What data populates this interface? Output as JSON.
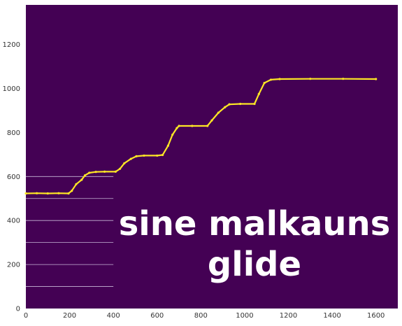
{
  "chart_data": {
    "type": "heatmap",
    "title": "",
    "xlabel": "",
    "ylabel": "",
    "xlim": [
      0,
      1700
    ],
    "ylim": [
      0,
      1380
    ],
    "x_ticks": [
      "0",
      "200",
      "400",
      "600",
      "800",
      "1000",
      "1200",
      "1400",
      "1600"
    ],
    "y_ticks": [
      "0",
      "200",
      "400",
      "600",
      "800",
      "1000",
      "1200"
    ],
    "background_color": "#440154",
    "trace_color": "#fde725",
    "grid_line_color": "#c8b8d8",
    "grid_lines_y": [
      100,
      200,
      300,
      400,
      500,
      600
    ],
    "grid_lines_x_range": [
      0,
      400
    ],
    "pitch_trace": [
      {
        "x": 0,
        "y": 523
      },
      {
        "x": 50,
        "y": 524
      },
      {
        "x": 100,
        "y": 523
      },
      {
        "x": 150,
        "y": 524
      },
      {
        "x": 195,
        "y": 523
      },
      {
        "x": 210,
        "y": 535
      },
      {
        "x": 230,
        "y": 565
      },
      {
        "x": 255,
        "y": 585
      },
      {
        "x": 270,
        "y": 605
      },
      {
        "x": 290,
        "y": 617
      },
      {
        "x": 320,
        "y": 621
      },
      {
        "x": 360,
        "y": 622
      },
      {
        "x": 410,
        "y": 622
      },
      {
        "x": 430,
        "y": 635
      },
      {
        "x": 450,
        "y": 660
      },
      {
        "x": 480,
        "y": 680
      },
      {
        "x": 505,
        "y": 692
      },
      {
        "x": 540,
        "y": 695
      },
      {
        "x": 600,
        "y": 695
      },
      {
        "x": 625,
        "y": 698
      },
      {
        "x": 650,
        "y": 740
      },
      {
        "x": 670,
        "y": 790
      },
      {
        "x": 690,
        "y": 820
      },
      {
        "x": 700,
        "y": 830
      },
      {
        "x": 760,
        "y": 830
      },
      {
        "x": 830,
        "y": 830
      },
      {
        "x": 850,
        "y": 855
      },
      {
        "x": 880,
        "y": 890
      },
      {
        "x": 910,
        "y": 915
      },
      {
        "x": 930,
        "y": 928
      },
      {
        "x": 980,
        "y": 930
      },
      {
        "x": 1045,
        "y": 930
      },
      {
        "x": 1065,
        "y": 975
      },
      {
        "x": 1090,
        "y": 1025
      },
      {
        "x": 1120,
        "y": 1040
      },
      {
        "x": 1160,
        "y": 1043
      },
      {
        "x": 1300,
        "y": 1044
      },
      {
        "x": 1450,
        "y": 1044
      },
      {
        "x": 1600,
        "y": 1043
      }
    ],
    "annotation": [
      "sine malkauns",
      "glide"
    ]
  }
}
